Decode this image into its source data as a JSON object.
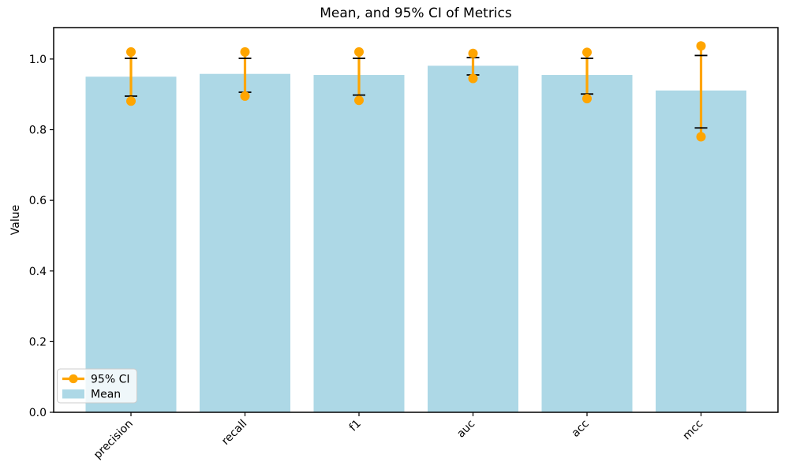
{
  "figure": {
    "background": "#ffffff"
  },
  "chart_data": {
    "type": "bar",
    "title": "Mean, and 95% CI of Metrics",
    "xlabel": "",
    "ylabel": "Value",
    "categories": [
      "precision",
      "recall",
      "f1",
      "auc",
      "acc",
      "mcc"
    ],
    "series": [
      {
        "name": "Mean",
        "values": [
          0.95,
          0.958,
          0.955,
          0.981,
          0.955,
          0.911
        ]
      }
    ],
    "error_bars": {
      "name": "std-caps",
      "high": [
        1.002,
        1.002,
        1.002,
        1.004,
        1.002,
        1.01
      ],
      "low": [
        0.895,
        0.906,
        0.898,
        0.955,
        0.901,
        0.805
      ]
    },
    "ci95": {
      "name": "95% CI",
      "high": [
        1.02,
        1.02,
        1.02,
        1.016,
        1.019,
        1.037
      ],
      "low": [
        0.881,
        0.895,
        0.883,
        0.945,
        0.888,
        0.78
      ]
    },
    "yticks": [
      "0.0",
      "0.2",
      "0.4",
      "0.6",
      "0.8",
      "1.0"
    ],
    "ytick_values": [
      0.0,
      0.2,
      0.4,
      0.6,
      0.8,
      1.0
    ],
    "ylim": [
      0,
      1.089
    ],
    "grid": false,
    "legend_position": "lower left",
    "colors": {
      "bar": "#ADD8E6",
      "ci": "#FFA500",
      "error": "#000000",
      "spine": "#000000",
      "legend_border": "#cccccc"
    }
  },
  "legend": {
    "items": [
      {
        "label": "95% CI",
        "marker": "line-dot",
        "color": "#FFA500"
      },
      {
        "label": "Mean",
        "marker": "patch",
        "color": "#ADD8E6"
      }
    ]
  }
}
